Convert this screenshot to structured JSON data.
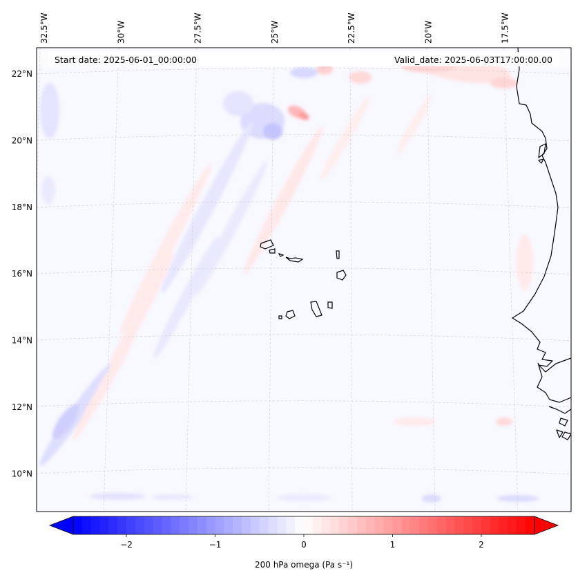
{
  "header": {
    "start_label": "Start date: 2025-06-01_00:00:00",
    "valid_label": "Valid_date: 2025-06-03T17:00:00.00"
  },
  "map": {
    "projection": "lambert-conformal",
    "region": "Cape Verde Islands and West African coast",
    "lat_range": [
      8.8,
      22.8
    ],
    "lon_range": [
      -33.0,
      -15.0
    ],
    "lat_ticks": [
      {
        "value": 22,
        "label": "22°N"
      },
      {
        "value": 20,
        "label": "20°N"
      },
      {
        "value": 18,
        "label": "18°N"
      },
      {
        "value": 16,
        "label": "16°N"
      },
      {
        "value": 14,
        "label": "14°N"
      },
      {
        "value": 12,
        "label": "12°N"
      },
      {
        "value": 10,
        "label": "10°N"
      }
    ],
    "lon_ticks": [
      {
        "value": -32.5,
        "label": "32.5°W"
      },
      {
        "value": -30,
        "label": "30°W"
      },
      {
        "value": -27.5,
        "label": "27.5°W"
      },
      {
        "value": -25,
        "label": "25°W"
      },
      {
        "value": -22.5,
        "label": "22.5°W"
      },
      {
        "value": -20,
        "label": "20°W"
      },
      {
        "value": -17.5,
        "label": "17.5°W"
      }
    ],
    "gridlines": true,
    "coastline_color": "#000000",
    "gridline_color": "#bbbbbb"
  },
  "colorbar": {
    "label": "200 hPa omega (Pa s⁻¹)",
    "vmin": -2.6,
    "vmax": 2.6,
    "ticks": [
      {
        "value": -2,
        "label": "−2"
      },
      {
        "value": -1,
        "label": "−1"
      },
      {
        "value": 0,
        "label": "0"
      },
      {
        "value": 1,
        "label": "1"
      },
      {
        "value": 2,
        "label": "2"
      }
    ],
    "colormap": "bwr",
    "color_low": "#0000ff",
    "color_mid": "#ffffff",
    "color_high": "#ff0000",
    "extend": "both",
    "levels": 52
  }
}
